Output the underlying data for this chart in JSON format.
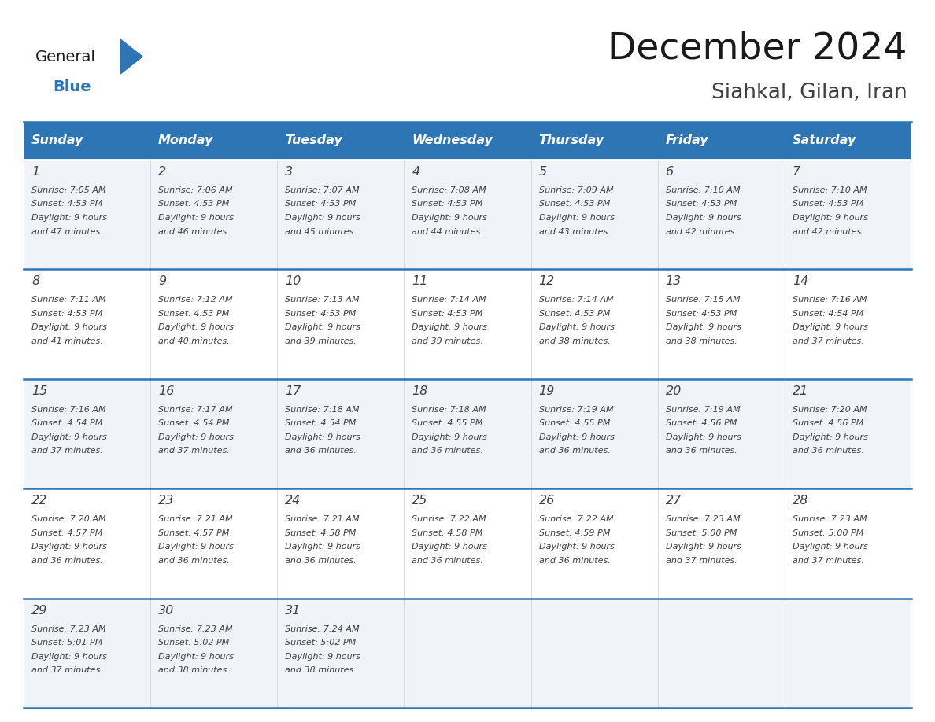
{
  "title": "December 2024",
  "subtitle": "Siahkal, Gilan, Iran",
  "days_of_week": [
    "Sunday",
    "Monday",
    "Tuesday",
    "Wednesday",
    "Thursday",
    "Friday",
    "Saturday"
  ],
  "header_bg": "#2e75b6",
  "header_text_color": "#ffffff",
  "row_bg_light": "#f0f4f8",
  "row_bg_white": "#ffffff",
  "cell_text_color": "#404040",
  "divider_color": "#2e75b6",
  "title_color": "#1a1a1a",
  "subtitle_color": "#404040",
  "logo_general_color": "#1a1a1a",
  "logo_blue_color": "#2e75b6",
  "weeks": [
    {
      "days": [
        {
          "date": 1,
          "sunrise": "7:05 AM",
          "sunset": "4:53 PM",
          "daylight_hours": 9,
          "daylight_minutes": 47
        },
        {
          "date": 2,
          "sunrise": "7:06 AM",
          "sunset": "4:53 PM",
          "daylight_hours": 9,
          "daylight_minutes": 46
        },
        {
          "date": 3,
          "sunrise": "7:07 AM",
          "sunset": "4:53 PM",
          "daylight_hours": 9,
          "daylight_minutes": 45
        },
        {
          "date": 4,
          "sunrise": "7:08 AM",
          "sunset": "4:53 PM",
          "daylight_hours": 9,
          "daylight_minutes": 44
        },
        {
          "date": 5,
          "sunrise": "7:09 AM",
          "sunset": "4:53 PM",
          "daylight_hours": 9,
          "daylight_minutes": 43
        },
        {
          "date": 6,
          "sunrise": "7:10 AM",
          "sunset": "4:53 PM",
          "daylight_hours": 9,
          "daylight_minutes": 42
        },
        {
          "date": 7,
          "sunrise": "7:10 AM",
          "sunset": "4:53 PM",
          "daylight_hours": 9,
          "daylight_minutes": 42
        }
      ]
    },
    {
      "days": [
        {
          "date": 8,
          "sunrise": "7:11 AM",
          "sunset": "4:53 PM",
          "daylight_hours": 9,
          "daylight_minutes": 41
        },
        {
          "date": 9,
          "sunrise": "7:12 AM",
          "sunset": "4:53 PM",
          "daylight_hours": 9,
          "daylight_minutes": 40
        },
        {
          "date": 10,
          "sunrise": "7:13 AM",
          "sunset": "4:53 PM",
          "daylight_hours": 9,
          "daylight_minutes": 39
        },
        {
          "date": 11,
          "sunrise": "7:14 AM",
          "sunset": "4:53 PM",
          "daylight_hours": 9,
          "daylight_minutes": 39
        },
        {
          "date": 12,
          "sunrise": "7:14 AM",
          "sunset": "4:53 PM",
          "daylight_hours": 9,
          "daylight_minutes": 38
        },
        {
          "date": 13,
          "sunrise": "7:15 AM",
          "sunset": "4:53 PM",
          "daylight_hours": 9,
          "daylight_minutes": 38
        },
        {
          "date": 14,
          "sunrise": "7:16 AM",
          "sunset": "4:54 PM",
          "daylight_hours": 9,
          "daylight_minutes": 37
        }
      ]
    },
    {
      "days": [
        {
          "date": 15,
          "sunrise": "7:16 AM",
          "sunset": "4:54 PM",
          "daylight_hours": 9,
          "daylight_minutes": 37
        },
        {
          "date": 16,
          "sunrise": "7:17 AM",
          "sunset": "4:54 PM",
          "daylight_hours": 9,
          "daylight_minutes": 37
        },
        {
          "date": 17,
          "sunrise": "7:18 AM",
          "sunset": "4:54 PM",
          "daylight_hours": 9,
          "daylight_minutes": 36
        },
        {
          "date": 18,
          "sunrise": "7:18 AM",
          "sunset": "4:55 PM",
          "daylight_hours": 9,
          "daylight_minutes": 36
        },
        {
          "date": 19,
          "sunrise": "7:19 AM",
          "sunset": "4:55 PM",
          "daylight_hours": 9,
          "daylight_minutes": 36
        },
        {
          "date": 20,
          "sunrise": "7:19 AM",
          "sunset": "4:56 PM",
          "daylight_hours": 9,
          "daylight_minutes": 36
        },
        {
          "date": 21,
          "sunrise": "7:20 AM",
          "sunset": "4:56 PM",
          "daylight_hours": 9,
          "daylight_minutes": 36
        }
      ]
    },
    {
      "days": [
        {
          "date": 22,
          "sunrise": "7:20 AM",
          "sunset": "4:57 PM",
          "daylight_hours": 9,
          "daylight_minutes": 36
        },
        {
          "date": 23,
          "sunrise": "7:21 AM",
          "sunset": "4:57 PM",
          "daylight_hours": 9,
          "daylight_minutes": 36
        },
        {
          "date": 24,
          "sunrise": "7:21 AM",
          "sunset": "4:58 PM",
          "daylight_hours": 9,
          "daylight_minutes": 36
        },
        {
          "date": 25,
          "sunrise": "7:22 AM",
          "sunset": "4:58 PM",
          "daylight_hours": 9,
          "daylight_minutes": 36
        },
        {
          "date": 26,
          "sunrise": "7:22 AM",
          "sunset": "4:59 PM",
          "daylight_hours": 9,
          "daylight_minutes": 36
        },
        {
          "date": 27,
          "sunrise": "7:23 AM",
          "sunset": "5:00 PM",
          "daylight_hours": 9,
          "daylight_minutes": 37
        },
        {
          "date": 28,
          "sunrise": "7:23 AM",
          "sunset": "5:00 PM",
          "daylight_hours": 9,
          "daylight_minutes": 37
        }
      ]
    },
    {
      "days": [
        {
          "date": 29,
          "sunrise": "7:23 AM",
          "sunset": "5:01 PM",
          "daylight_hours": 9,
          "daylight_minutes": 37
        },
        {
          "date": 30,
          "sunrise": "7:23 AM",
          "sunset": "5:02 PM",
          "daylight_hours": 9,
          "daylight_minutes": 38
        },
        {
          "date": 31,
          "sunrise": "7:24 AM",
          "sunset": "5:02 PM",
          "daylight_hours": 9,
          "daylight_minutes": 38
        },
        null,
        null,
        null,
        null
      ]
    }
  ]
}
